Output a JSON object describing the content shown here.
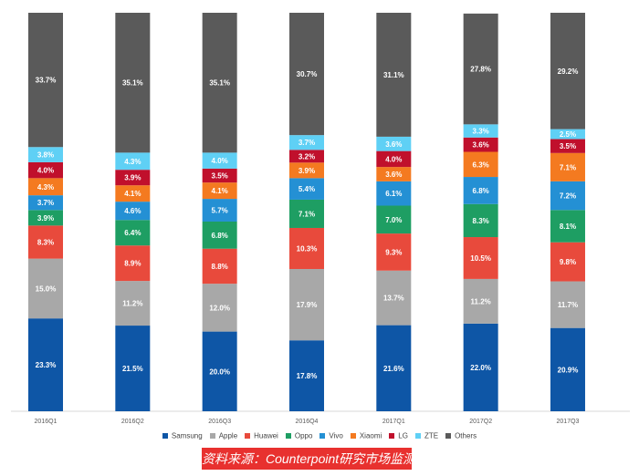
{
  "chart_data": {
    "type": "bar",
    "stacked": true,
    "percent_stacked": true,
    "categories": [
      "2016Q1",
      "2016Q2",
      "2016Q3",
      "2016Q4",
      "2017Q1",
      "2017Q2",
      "2017Q3"
    ],
    "series": [
      {
        "name": "Samsung",
        "color": "#0e56a6",
        "values": [
          23.3,
          21.5,
          20.0,
          17.8,
          21.6,
          22.0,
          20.9
        ]
      },
      {
        "name": "Apple",
        "color": "#a8a8a8",
        "values": [
          15.0,
          11.2,
          12.0,
          17.9,
          13.7,
          11.2,
          11.7
        ]
      },
      {
        "name": "Huawei",
        "color": "#e84a3c",
        "values": [
          8.3,
          8.9,
          8.8,
          10.3,
          9.3,
          10.5,
          9.8
        ]
      },
      {
        "name": "Oppo",
        "color": "#1e9e63",
        "values": [
          3.9,
          6.4,
          6.8,
          7.1,
          7.0,
          8.3,
          8.1
        ]
      },
      {
        "name": "Vivo",
        "color": "#2490d4",
        "values": [
          3.7,
          4.6,
          5.7,
          5.4,
          6.1,
          6.8,
          7.2
        ]
      },
      {
        "name": "Xiaomi",
        "color": "#f47a20",
        "values": [
          4.3,
          4.1,
          4.1,
          3.9,
          3.6,
          6.3,
          7.1
        ]
      },
      {
        "name": "LG",
        "color": "#c0102c",
        "values": [
          4.0,
          3.9,
          3.5,
          3.2,
          4.0,
          3.6,
          3.5
        ]
      },
      {
        "name": "ZTE",
        "color": "#5fd0f5",
        "values": [
          3.8,
          4.3,
          4.0,
          3.7,
          3.6,
          3.3,
          2.5
        ]
      },
      {
        "name": "Others",
        "color": "#5a5a5a",
        "values": [
          33.7,
          35.1,
          35.1,
          30.7,
          31.1,
          27.8,
          29.2
        ]
      }
    ],
    "value_suffix": "%",
    "ylim": [
      0,
      100
    ],
    "legend_position": "bottom"
  },
  "source_banner": "资料来源：Counterpoint研究市场监测"
}
